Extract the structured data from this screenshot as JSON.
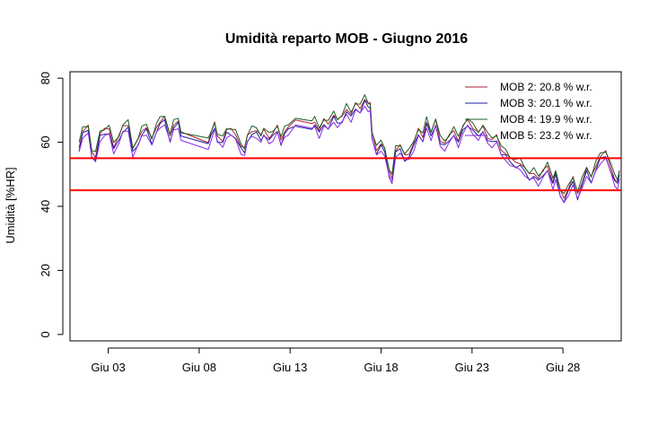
{
  "chart_data": {
    "type": "line",
    "title": "Umidità reparto MOB - Giugno 2016",
    "ylabel": "Umidità [%HR]",
    "xlabel": "",
    "xlim": [
      0.9,
      31.2
    ],
    "ylim": [
      -2,
      82
    ],
    "x_ticks": [
      {
        "x": 3,
        "label": "Giu 03"
      },
      {
        "x": 8,
        "label": "Giu 08"
      },
      {
        "x": 13,
        "label": "Giu 13"
      },
      {
        "x": 18,
        "label": "Giu 18"
      },
      {
        "x": 23,
        "label": "Giu 23"
      },
      {
        "x": 28,
        "label": "Giu 28"
      }
    ],
    "y_ticks": [
      0,
      20,
      40,
      60,
      80
    ],
    "reference_lines": [
      {
        "y": 55,
        "color": "#ff0000"
      },
      {
        "y": 45,
        "color": "#ff0000"
      }
    ],
    "legend_position": "top-right",
    "base_profile": [
      [
        1.4,
        58
      ],
      [
        1.6,
        63
      ],
      [
        1.9,
        64
      ],
      [
        2.1,
        56
      ],
      [
        2.3,
        55
      ],
      [
        2.55,
        62
      ],
      [
        2.8,
        63
      ],
      [
        3.05,
        63.5
      ],
      [
        3.3,
        58
      ],
      [
        3.6,
        61
      ],
      [
        3.8,
        64
      ],
      [
        4.1,
        65
      ],
      [
        4.35,
        57
      ],
      [
        4.65,
        60
      ],
      [
        4.85,
        63
      ],
      [
        5.1,
        64
      ],
      [
        5.4,
        60
      ],
      [
        5.65,
        64
      ],
      [
        5.85,
        66
      ],
      [
        6.1,
        67
      ],
      [
        6.4,
        61
      ],
      [
        6.6,
        65
      ],
      [
        6.85,
        66
      ],
      [
        7.0,
        62
      ],
      [
        8.5,
        59.5
      ],
      [
        8.65,
        62
      ],
      [
        8.85,
        65
      ],
      [
        9.0,
        61
      ],
      [
        9.3,
        60
      ],
      [
        9.5,
        63
      ],
      [
        9.75,
        63
      ],
      [
        10.0,
        62
      ],
      [
        10.3,
        58
      ],
      [
        10.5,
        57
      ],
      [
        10.65,
        61
      ],
      [
        10.9,
        63
      ],
      [
        11.15,
        63
      ],
      [
        11.4,
        61
      ],
      [
        11.55,
        63
      ],
      [
        11.85,
        61
      ],
      [
        12.05,
        62
      ],
      [
        12.3,
        64
      ],
      [
        12.5,
        60
      ],
      [
        12.7,
        63
      ],
      [
        12.9,
        64
      ],
      [
        13.3,
        66
      ],
      [
        14.2,
        65
      ],
      [
        14.35,
        66
      ],
      [
        14.6,
        63
      ],
      [
        14.85,
        66
      ],
      [
        15.1,
        65
      ],
      [
        15.4,
        68
      ],
      [
        15.6,
        66
      ],
      [
        15.85,
        67
      ],
      [
        16.1,
        70
      ],
      [
        16.35,
        68
      ],
      [
        16.6,
        71
      ],
      [
        16.85,
        70
      ],
      [
        17.1,
        73
      ],
      [
        17.3,
        71
      ],
      [
        17.4,
        71
      ],
      [
        17.5,
        62
      ],
      [
        17.75,
        57
      ],
      [
        18.0,
        59
      ],
      [
        18.2,
        57
      ],
      [
        18.45,
        50
      ],
      [
        18.6,
        48
      ],
      [
        18.8,
        57
      ],
      [
        19.05,
        58
      ],
      [
        19.3,
        55
      ],
      [
        19.55,
        56
      ],
      [
        19.8,
        59
      ],
      [
        20.05,
        63
      ],
      [
        20.3,
        61
      ],
      [
        20.5,
        66
      ],
      [
        20.75,
        62
      ],
      [
        21.0,
        66
      ],
      [
        21.25,
        60
      ],
      [
        21.5,
        59
      ],
      [
        21.75,
        61
      ],
      [
        22.0,
        63
      ],
      [
        22.25,
        60
      ],
      [
        22.5,
        64
      ],
      [
        22.75,
        66
      ],
      [
        23.05,
        64
      ],
      [
        23.35,
        62
      ],
      [
        23.6,
        64
      ],
      [
        23.85,
        61
      ],
      [
        24.1,
        60
      ],
      [
        24.35,
        61
      ],
      [
        24.6,
        57
      ],
      [
        24.85,
        56
      ],
      [
        25.1,
        54
      ],
      [
        25.4,
        53
      ],
      [
        25.65,
        53
      ],
      [
        25.9,
        51
      ],
      [
        26.15,
        49
      ],
      [
        26.4,
        50
      ],
      [
        26.65,
        48
      ],
      [
        26.9,
        50
      ],
      [
        27.15,
        52
      ],
      [
        27.45,
        47
      ],
      [
        27.6,
        50
      ],
      [
        27.85,
        44
      ],
      [
        28.05,
        42
      ],
      [
        28.3,
        45
      ],
      [
        28.55,
        48
      ],
      [
        28.8,
        43
      ],
      [
        29.05,
        47
      ],
      [
        29.3,
        51
      ],
      [
        29.55,
        48
      ],
      [
        29.8,
        52
      ],
      [
        30.05,
        55
      ],
      [
        30.35,
        56
      ],
      [
        30.6,
        52
      ],
      [
        30.85,
        48
      ],
      [
        31.0,
        47
      ],
      [
        31.1,
        50
      ]
    ],
    "series": [
      {
        "name": "MOB 2",
        "legend": "MOB 2:  20.8 % w.r.",
        "color": "#b22234",
        "offset": 0.8
      },
      {
        "name": "MOB 3",
        "legend": "MOB 3:  20.1 % w.r.",
        "color": "#1f1fa0",
        "offset": -0.4
      },
      {
        "name": "MOB 4",
        "legend": "MOB 4:  19.9 % w.r.",
        "color": "#1b5e20",
        "offset": 1.5
      },
      {
        "name": "MOB 5",
        "legend": "MOB 5:  23.2 % w.r.",
        "color": "#8a2be2",
        "offset": -1.2
      }
    ]
  }
}
